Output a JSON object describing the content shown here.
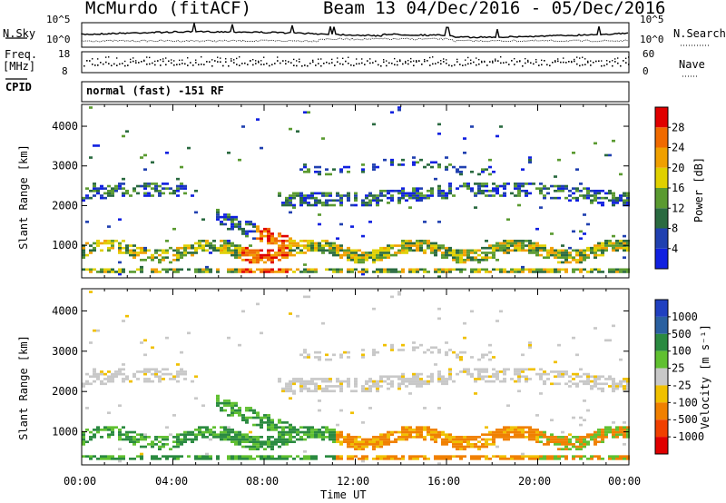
{
  "header": {
    "station": "McMurdo (fitACF)",
    "beam_date": "Beam 13  04/Dec/2016 - 05/Dec/2016"
  },
  "top_panels": {
    "nsky_label": "N.Sky",
    "nsearch_label": "N.Search",
    "nsky_ticks": [
      "10^5",
      "10^0"
    ],
    "nsearch_ticks": [
      "10^5",
      "10^0"
    ],
    "freq_label_line1": "Freq.",
    "freq_label_line2": "[MHz]",
    "freq_ticks": [
      "18",
      "8"
    ],
    "nave_label": "Nave",
    "nave_ticks": [
      "60",
      "0"
    ],
    "cpid_label": "CPID",
    "cpid_text": "normal (fast) -151 RF"
  },
  "chart_data": [
    {
      "type": "heatmap",
      "name": "power",
      "ylabel": "Slant Range [km]",
      "yticks": [
        "1000",
        "2000",
        "3000",
        "4000"
      ],
      "ylim": [
        180,
        4550
      ],
      "colorbar_label": "Power [dB]",
      "colorbar_ticks": [
        "4",
        "8",
        "12",
        "16",
        "20",
        "24",
        "28"
      ],
      "colorbar_colors": [
        "#1020e0",
        "#2040b0",
        "#2a6a40",
        "#5a9a30",
        "#e0d000",
        "#f0a000",
        "#f06a00",
        "#e00000"
      ]
    },
    {
      "type": "heatmap",
      "name": "velocity",
      "ylabel": "Slant Range [km]",
      "yticks": [
        "1000",
        "2000",
        "3000",
        "4000"
      ],
      "ylim": [
        180,
        4550
      ],
      "colorbar_label": "Velocity [m s⁻¹]",
      "colorbar_ticks": [
        "1000",
        "500",
        "100",
        "25",
        "-25",
        "-100",
        "-500",
        "-1000"
      ],
      "colorbar_colors": [
        "#2040c0",
        "#2a60a0",
        "#2a8a40",
        "#60c030",
        "#c8c8c8",
        "#f0c000",
        "#f08000",
        "#f04000",
        "#e00000"
      ]
    }
  ],
  "x_axis": {
    "ticks": [
      "00:00",
      "04:00",
      "08:00",
      "12:00",
      "16:00",
      "20:00",
      "00:00"
    ],
    "label": "Time UT"
  }
}
